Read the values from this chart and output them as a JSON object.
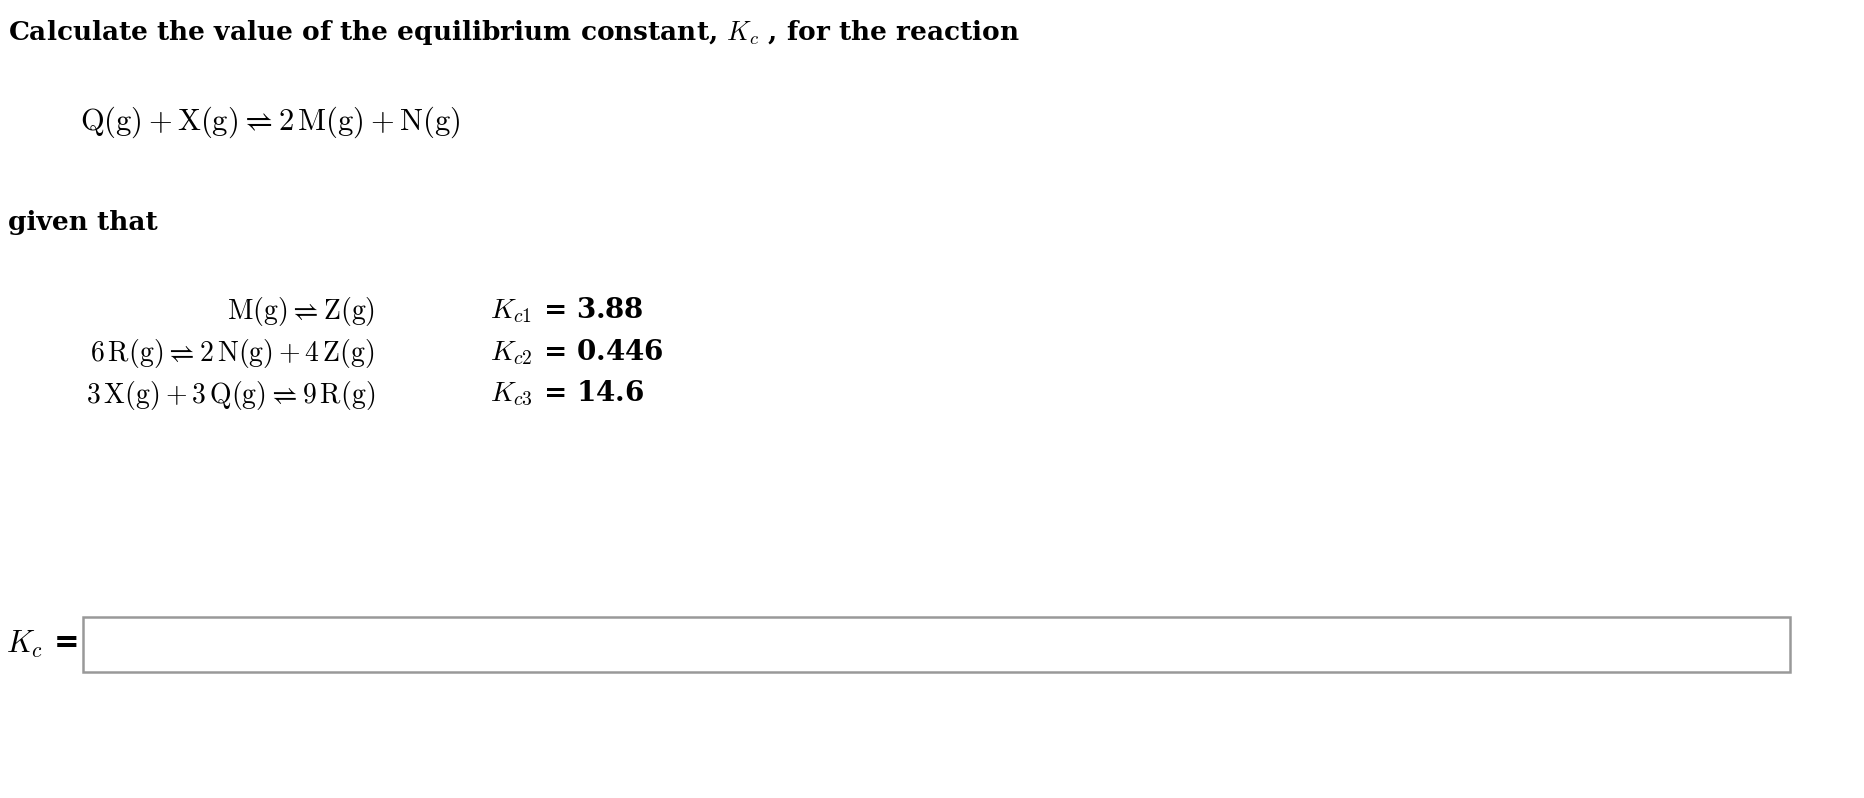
{
  "background_color": "#ffffff",
  "title_line1": "Calculate the value of the equilibrium constant, ",
  "title_kc": "$K_c$",
  "title_line2": " , for the reaction",
  "main_reaction": "$\\mathrm{Q(g) + X(g) \\rightleftharpoons 2\\,M(g) + N(g)}$",
  "given_that": "given that",
  "reactions": [
    {
      "eq": "$\\mathrm{M(g) \\rightleftharpoons Z(g)}$",
      "k": "$K_{c1}$",
      "kval": " = 3.88"
    },
    {
      "eq": "$\\mathrm{6\\,R(g) \\rightleftharpoons 2\\,N(g) + 4\\,Z(g)}$",
      "k": "$K_{c2}$",
      "kval": " = 0.446"
    },
    {
      "eq": "$\\mathrm{3\\,X(g) + 3\\,Q(g) \\rightleftharpoons 9\\,R(g)}$",
      "k": "$K_{c3}$",
      "kval": " = 14.6"
    }
  ],
  "answer_label_k": "$K_c$",
  "answer_label_eq": " =",
  "text_color": "#000000",
  "box_edge_color": "#999999",
  "figsize": [
    18.64,
    7.98
  ],
  "dpi": 100
}
